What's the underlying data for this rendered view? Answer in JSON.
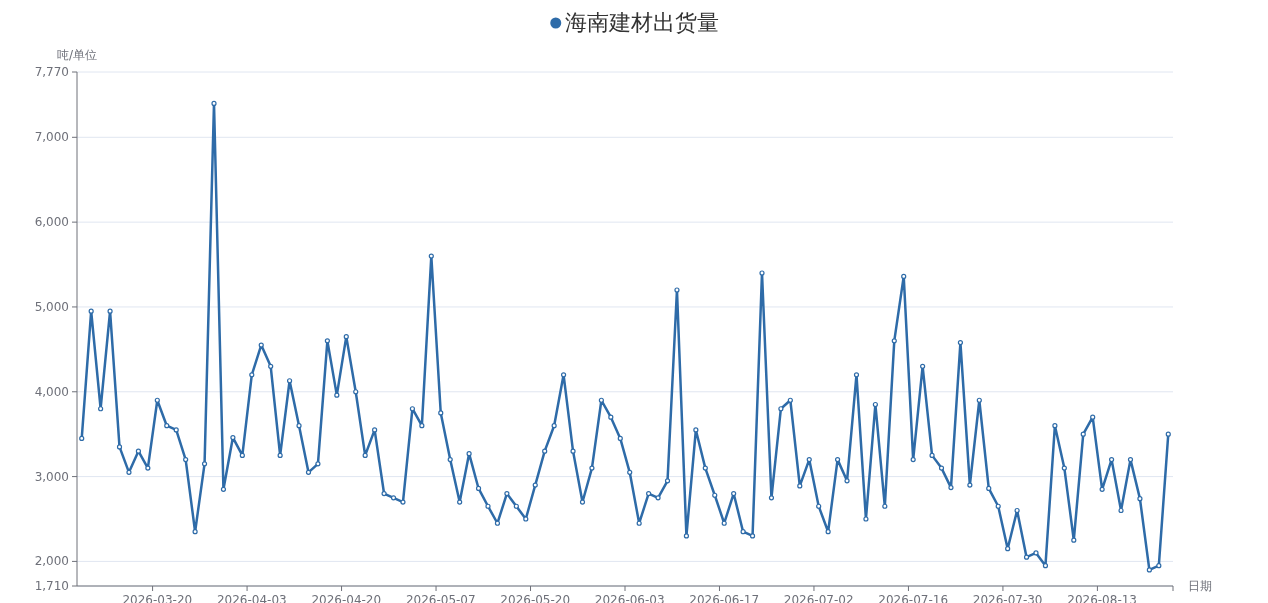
{
  "chart_data": {
    "type": "line",
    "ylabel": "吨/单位",
    "xlabel": "日期",
    "categories": [
      null,
      null,
      null,
      null,
      null,
      null,
      null,
      null,
      "2026-03-20",
      null,
      null,
      null,
      null,
      null,
      null,
      null,
      null,
      null,
      "2026-04-03",
      null,
      null,
      null,
      null,
      null,
      null,
      null,
      null,
      null,
      "2026-04-20",
      null,
      null,
      null,
      null,
      null,
      null,
      null,
      null,
      null,
      "2026-05-07",
      null,
      null,
      null,
      null,
      null,
      null,
      null,
      null,
      null,
      "2026-05-20",
      null,
      null,
      null,
      null,
      null,
      null,
      null,
      null,
      null,
      "2026-06-03",
      null,
      null,
      null,
      null,
      null,
      null,
      null,
      null,
      null,
      "2026-06-17",
      null,
      null,
      null,
      null,
      null,
      null,
      null,
      null,
      null,
      "2026-07-02",
      null,
      null,
      null,
      null,
      null,
      null,
      null,
      null,
      null,
      "2026-07-16",
      null,
      null,
      null,
      null,
      null,
      null,
      null,
      null,
      null,
      "2026-07-30",
      null,
      null,
      null,
      null,
      null,
      null,
      null,
      null,
      null,
      "2026-08-13",
      null,
      null,
      null,
      null,
      null,
      null,
      null
    ],
    "series": [
      {
        "name": "海南建材出货量",
        "color": "#2e6ba8",
        "values": [
          3450,
          4950,
          3800,
          4950,
          3350,
          3050,
          3300,
          3100,
          3900,
          3600,
          3550,
          3200,
          2350,
          3150,
          7400,
          2850,
          3460,
          3250,
          4200,
          4550,
          4300,
          3250,
          4130,
          3600,
          3050,
          3150,
          4600,
          3960,
          4650,
          4000,
          3250,
          3550,
          2800,
          2750,
          2700,
          3800,
          3600,
          5600,
          3750,
          3200,
          2700,
          3270,
          2860,
          2650,
          2450,
          2800,
          2650,
          2500,
          2900,
          3300,
          3600,
          4200,
          3300,
          2700,
          3100,
          3900,
          3700,
          3450,
          3050,
          2450,
          2800,
          2750,
          2950,
          5200,
          2300,
          3550,
          3100,
          2780,
          2450,
          2800,
          2350,
          2300,
          5400,
          2750,
          3800,
          3900,
          2890,
          3200,
          2650,
          2350,
          3200,
          2950,
          4200,
          2500,
          3850,
          2650,
          4600,
          5360,
          3200,
          4300,
          3250,
          3100,
          2870,
          4580,
          2900,
          3900,
          2860,
          2650,
          2150,
          2600,
          2050,
          2100,
          1950,
          3600,
          3100,
          2250,
          3500,
          3700,
          2850,
          3200,
          2600,
          3200,
          2740,
          1900,
          1950,
          3500
        ]
      }
    ],
    "ylim": [
      1710,
      7770
    ],
    "yticks": [
      {
        "value": 1710,
        "label": "1,710"
      },
      {
        "value": 2000,
        "label": "2,000"
      },
      {
        "value": 3000,
        "label": "3,000"
      },
      {
        "value": 4000,
        "label": "4,000"
      },
      {
        "value": 5000,
        "label": "5,000"
      },
      {
        "value": 6000,
        "label": "6,000"
      },
      {
        "value": 7000,
        "label": "7,000"
      },
      {
        "value": 7770,
        "label": "7,770"
      }
    ],
    "grid": "y",
    "legend": "top",
    "marker": "circle",
    "line_style": "solid"
  }
}
